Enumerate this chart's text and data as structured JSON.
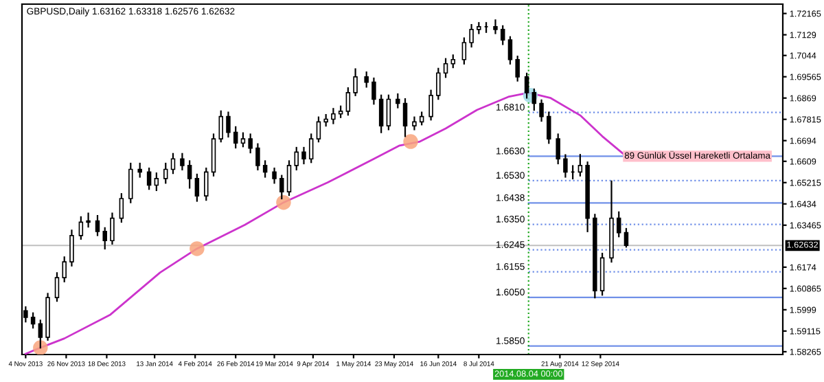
{
  "chart_data": {
    "type": "candlestick",
    "title": "GBPUSD,Daily 1.63162 1.63318 1.62576 1.62632",
    "color": "#000000",
    "x": [
      "2013-11-04",
      "2013-11-08",
      "2013-11-12",
      "2013-11-16",
      "2013-11-21",
      "2013-11-25",
      "2013-11-29",
      "2013-12-04",
      "2013-12-08",
      "2013-12-13",
      "2013-12-17",
      "2013-12-21",
      "2013-12-26",
      "2013-12-31",
      "2014-01-05",
      "2014-01-10",
      "2014-01-14",
      "2014-01-19",
      "2014-01-23",
      "2014-01-28",
      "2014-02-01",
      "2014-02-05",
      "2014-02-10",
      "2014-02-14",
      "2014-02-18",
      "2014-02-22",
      "2014-02-26",
      "2014-03-02",
      "2014-03-06",
      "2014-03-10",
      "2014-03-14",
      "2014-03-19",
      "2014-03-23",
      "2014-03-27",
      "2014-03-31",
      "2014-04-04",
      "2014-04-08",
      "2014-04-12",
      "2014-04-16",
      "2014-04-20",
      "2014-04-24",
      "2014-04-28",
      "2014-05-02",
      "2014-05-08",
      "2014-05-12",
      "2014-05-16",
      "2014-05-20",
      "2014-05-25",
      "2014-05-29",
      "2014-06-03",
      "2014-06-07",
      "2014-06-12",
      "2014-06-16",
      "2014-06-20",
      "2014-06-24",
      "2014-06-30",
      "2014-07-04",
      "2014-07-08",
      "2014-07-12",
      "2014-07-17",
      "2014-07-21",
      "2014-07-25",
      "2014-07-29",
      "2014-08-03",
      "2014-08-07",
      "2014-08-11",
      "2014-08-15",
      "2014-08-20",
      "2014-08-24",
      "2014-08-28",
      "2014-09-01",
      "2014-09-05",
      "2014-09-09",
      "2014-09-13",
      "2014-09-18",
      "2014-09-22",
      "2014-09-26"
    ],
    "ohlc": [
      [
        1.5995,
        1.601,
        1.595,
        1.5968
      ],
      [
        1.5968,
        1.5985,
        1.5925,
        1.5941
      ],
      [
        1.5941,
        1.5955,
        1.5843,
        1.5886
      ],
      [
        1.5886,
        1.6065,
        1.5875,
        1.6049
      ],
      [
        1.6049,
        1.615,
        1.6035,
        1.6131
      ],
      [
        1.6131,
        1.6215,
        1.6115,
        1.6196
      ],
      [
        1.6196,
        1.6325,
        1.618,
        1.6304
      ],
      [
        1.6304,
        1.638,
        1.629,
        1.6359
      ],
      [
        1.6359,
        1.6395,
        1.634,
        1.6364
      ],
      [
        1.6364,
        1.6385,
        1.6305,
        1.6321
      ],
      [
        1.6321,
        1.6335,
        1.625,
        1.6283
      ],
      [
        1.6283,
        1.6395,
        1.627,
        1.6375
      ],
      [
        1.6375,
        1.6475,
        1.636,
        1.6456
      ],
      [
        1.6456,
        1.66,
        1.644,
        1.6576
      ],
      [
        1.6576,
        1.66,
        1.6545,
        1.6565
      ],
      [
        1.6565,
        1.658,
        1.6495,
        1.6511
      ],
      [
        1.6511,
        1.656,
        1.649,
        1.6538
      ],
      [
        1.6538,
        1.66,
        1.652,
        1.6576
      ],
      [
        1.6576,
        1.664,
        1.656,
        1.6619
      ],
      [
        1.6619,
        1.664,
        1.6575,
        1.6592
      ],
      [
        1.6592,
        1.661,
        1.65,
        1.6538
      ],
      [
        1.6538,
        1.6555,
        1.6446,
        1.6467
      ],
      [
        1.6467,
        1.658,
        1.645,
        1.6565
      ],
      [
        1.6565,
        1.672,
        1.655,
        1.6701
      ],
      [
        1.6701,
        1.6815,
        1.669,
        1.6793
      ],
      [
        1.6793,
        1.681,
        1.671,
        1.6728
      ],
      [
        1.6728,
        1.675,
        1.6665,
        1.6684
      ],
      [
        1.6684,
        1.6725,
        1.667,
        1.6701
      ],
      [
        1.6701,
        1.672,
        1.6645,
        1.6663
      ],
      [
        1.6663,
        1.668,
        1.6575,
        1.6592
      ],
      [
        1.6592,
        1.661,
        1.6545,
        1.6565
      ],
      [
        1.6565,
        1.658,
        1.652,
        1.6538
      ],
      [
        1.6538,
        1.655,
        1.6456,
        1.6484
      ],
      [
        1.6484,
        1.661,
        1.647,
        1.6592
      ],
      [
        1.6592,
        1.6665,
        1.6575,
        1.6647
      ],
      [
        1.6647,
        1.6665,
        1.66,
        1.6619
      ],
      [
        1.6619,
        1.672,
        1.6605,
        1.6701
      ],
      [
        1.6701,
        1.679,
        1.669,
        1.6771
      ],
      [
        1.6771,
        1.68,
        1.6755,
        1.6782
      ],
      [
        1.6782,
        1.6825,
        1.6765,
        1.6804
      ],
      [
        1.6804,
        1.6835,
        1.679,
        1.6815
      ],
      [
        1.6815,
        1.691,
        1.68,
        1.6891
      ],
      [
        1.6891,
        1.6988,
        1.688,
        1.6956
      ],
      [
        1.6956,
        1.6975,
        1.6915,
        1.6934
      ],
      [
        1.6934,
        1.695,
        1.6845,
        1.6864
      ],
      [
        1.6864,
        1.688,
        1.6728,
        1.6755
      ],
      [
        1.6755,
        1.688,
        1.674,
        1.6864
      ],
      [
        1.6864,
        1.6885,
        1.683,
        1.6847
      ],
      [
        1.6847,
        1.6865,
        1.6712,
        1.6755
      ],
      [
        1.6755,
        1.679,
        1.674,
        1.6771
      ],
      [
        1.6771,
        1.681,
        1.676,
        1.6793
      ],
      [
        1.6793,
        1.69,
        1.678,
        1.688
      ],
      [
        1.688,
        1.699,
        1.6865,
        1.6972
      ],
      [
        1.6972,
        1.703,
        1.6955,
        1.701
      ],
      [
        1.701,
        1.7045,
        1.6995,
        1.7027
      ],
      [
        1.7027,
        1.7115,
        1.701,
        1.7097
      ],
      [
        1.7097,
        1.717,
        1.708,
        1.7151
      ],
      [
        1.7151,
        1.7178,
        1.7135,
        1.7162
      ],
      [
        1.7162,
        1.7178,
        1.714,
        1.7162
      ],
      [
        1.7162,
        1.7189,
        1.7135,
        1.7151
      ],
      [
        1.7151,
        1.7165,
        1.709,
        1.7108
      ],
      [
        1.7108,
        1.712,
        1.701,
        1.7027
      ],
      [
        1.7027,
        1.704,
        1.694,
        1.6956
      ],
      [
        1.6956,
        1.697,
        1.687,
        1.6891
      ],
      [
        1.6891,
        1.6905,
        1.682,
        1.6847
      ],
      [
        1.6847,
        1.686,
        1.6775,
        1.6793
      ],
      [
        1.6793,
        1.681,
        1.6684,
        1.6701
      ],
      [
        1.6701,
        1.672,
        1.66,
        1.6619
      ],
      [
        1.6619,
        1.6635,
        1.6545,
        1.6565
      ],
      [
        1.6565,
        1.659,
        1.6538,
        1.6565
      ],
      [
        1.6565,
        1.6636,
        1.655,
        1.6592
      ],
      [
        1.6592,
        1.6605,
        1.6321,
        1.6375
      ],
      [
        1.6375,
        1.639,
        1.6049,
        1.6077
      ],
      [
        1.6077,
        1.623,
        1.606,
        1.6212
      ],
      [
        1.6212,
        1.6527,
        1.6196,
        1.6375
      ],
      [
        1.6375,
        1.64,
        1.63,
        1.6316
      ],
      [
        1.63162,
        1.63318,
        1.62576,
        1.62632
      ]
    ],
    "series": [
      {
        "type": "line",
        "color": "#cc33cc",
        "x": [
          "2013-11-04",
          "2013-11-12",
          "2013-11-25",
          "2013-12-20",
          "2014-01-16",
          "2014-02-05",
          "2014-03-03",
          "2014-03-24",
          "2014-04-17",
          "2014-05-12",
          "2014-05-26",
          "2014-06-06",
          "2014-06-20",
          "2014-07-07",
          "2014-07-24",
          "2014-08-04",
          "2014-08-16",
          "2014-09-01",
          "2014-09-13",
          "2014-09-25"
        ],
        "values": [
          1.5818,
          1.5843,
          1.5881,
          1.5979,
          1.6152,
          1.625,
          1.6348,
          1.644,
          1.6522,
          1.6619,
          1.6674,
          1.669,
          1.6744,
          1.682,
          1.6874,
          1.6891,
          1.6869,
          1.6798,
          1.6712,
          1.6636
        ]
      },
      {
        "type": "scatter",
        "x": [
          "2013-11-12",
          "2014-02-05",
          "2014-03-24",
          "2014-06-01",
          "2014-08-05"
        ],
        "values": [
          1.5843,
          1.625,
          1.644,
          1.669,
          1.688
        ],
        "colors": [
          "#f8a47c",
          "#f8a47c",
          "#f8a47c",
          "#f8a47c",
          "#9fdbe6"
        ]
      }
    ],
    "xlim": [
      "2013-11-02",
      "2014-12-20"
    ],
    "ylim": [
      1.5815,
      1.7255
    ],
    "xticks": [
      {
        "value": "2013-11-04",
        "label": "4 Nov 2013"
      },
      {
        "value": "2013-11-26",
        "label": "26 Nov 2013"
      },
      {
        "value": "2013-12-18",
        "label": "18 Dec 2013"
      },
      {
        "value": "2014-01-13",
        "label": "13 Jan 2014"
      },
      {
        "value": "2014-02-04",
        "label": "4 Feb 2014"
      },
      {
        "value": "2014-02-26",
        "label": "26 Feb 2014"
      },
      {
        "value": "2014-03-19",
        "label": "19 Mar 2014"
      },
      {
        "value": "2014-04-09",
        "label": "9 Apr 2014"
      },
      {
        "value": "2014-05-01",
        "label": "1 May 2014"
      },
      {
        "value": "2014-05-23",
        "label": "23 May 2014"
      },
      {
        "value": "2014-06-16",
        "label": "16 Jun 2014"
      },
      {
        "value": "2014-07-08",
        "label": "8 Jul 2014"
      },
      {
        "value": "2014-08-21",
        "label": "21 Aug 2014"
      },
      {
        "value": "2014-09-12",
        "label": "12 Sep 2014"
      }
    ],
    "yticks": [
      1.72165,
      1.7129,
      1.7044,
      1.69565,
      1.6869,
      1.67815,
      1.6694,
      1.6609,
      1.65215,
      1.6434,
      1.63465,
      1.6174,
      1.60865,
      1.5999,
      1.59115,
      1.58265
    ],
    "ref_lines": [
      {
        "axis": "x",
        "value": "2014-08-04",
        "label": "2014.08.04 00:00",
        "color": "#22aa22",
        "line_style": "dotted"
      },
      {
        "axis": "y",
        "value": 1.62632,
        "label": "1.62632",
        "color": "#c0c0c0",
        "line_style": "solid"
      },
      {
        "axis": "y",
        "value": 1.681,
        "label": "1.6810",
        "color": "#7090e8",
        "line_style": "dotted"
      },
      {
        "axis": "y",
        "value": 1.663,
        "label": "1.6630",
        "color": "#7090e8",
        "line_style": "solid"
      },
      {
        "axis": "y",
        "value": 1.653,
        "label": "1.6530",
        "color": "#7090e8",
        "line_style": "dotted"
      },
      {
        "axis": "y",
        "value": 1.6438,
        "label": "1.6438",
        "color": "#7090e8",
        "line_style": "solid"
      },
      {
        "axis": "y",
        "value": 1.635,
        "label": "1.6350",
        "color": "#7090e8",
        "line_style": "dotted"
      },
      {
        "axis": "y",
        "value": 1.6245,
        "label": "1.6245",
        "color": "#7090e8",
        "line_style": "dotted"
      },
      {
        "axis": "y",
        "value": 1.6155,
        "label": "1.6155",
        "color": "#7090e8",
        "line_style": "dotted"
      },
      {
        "axis": "y",
        "value": 1.605,
        "label": "1.6050",
        "color": "#7090e8",
        "line_style": "solid"
      },
      {
        "axis": "y",
        "value": 1.585,
        "label": "1.5850",
        "color": "#7090e8",
        "line_style": "solid"
      }
    ],
    "annotations": [
      {
        "text": "89 Günlük Üssel Hareketli Ortalama",
        "x": "2014-09-25",
        "y": 1.663
      }
    ],
    "grid": false,
    "legend": false
  }
}
